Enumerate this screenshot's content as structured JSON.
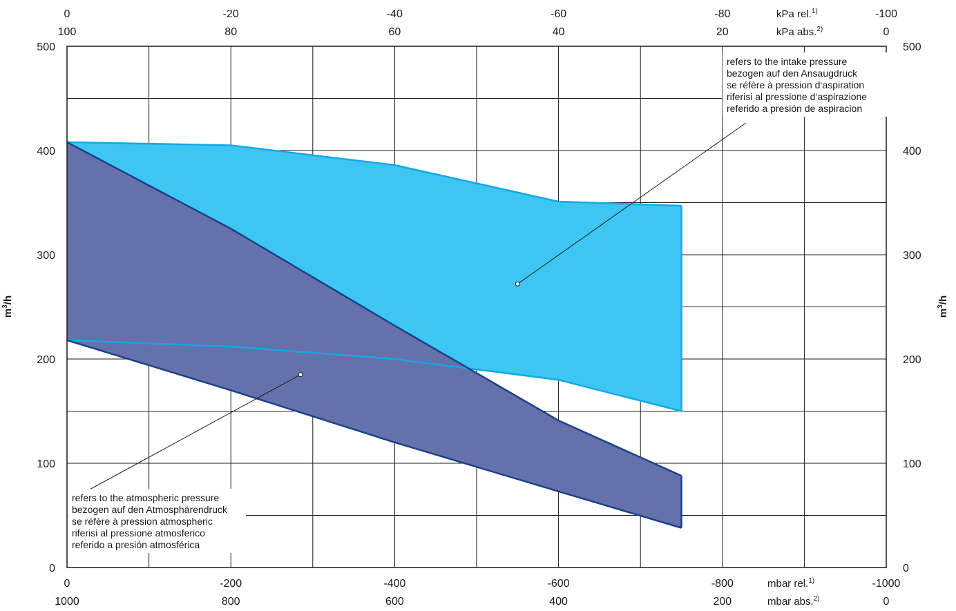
{
  "chart_data": {
    "type": "area",
    "x_axis_bottom_rel": {
      "ticks": [
        "0",
        "-200",
        "-400",
        "-600",
        "-800",
        "-1000"
      ],
      "unit_label": "mbar rel.",
      "unit_sup": "1)"
    },
    "x_axis_bottom_abs": {
      "ticks": [
        "1000",
        "800",
        "600",
        "400",
        "200",
        "0"
      ],
      "unit_label": "mbar abs.",
      "unit_sup": "2)"
    },
    "x_axis_top_rel": {
      "ticks": [
        "0",
        "-20",
        "-40",
        "-60",
        "-80",
        "-100"
      ],
      "unit_label": "kPa rel.",
      "unit_sup": "1)"
    },
    "x_axis_top_abs": {
      "ticks": [
        "100",
        "80",
        "60",
        "40",
        "20",
        "0"
      ],
      "unit_label": "kPa abs.",
      "unit_sup": "2)"
    },
    "y_axis": {
      "ticks": [
        "0",
        "100",
        "200",
        "300",
        "400",
        "500"
      ],
      "label_main": "m",
      "label_sup": "3",
      "label_end": "/h"
    },
    "xlim": [
      0,
      -1000
    ],
    "ylim": [
      0,
      500
    ],
    "grid": true,
    "series": [
      {
        "color": "#3ec6f2",
        "edge_color": "#14a8e6",
        "upper": [
          {
            "x": 0,
            "y": 408
          },
          {
            "x": -200,
            "y": 405
          },
          {
            "x": -400,
            "y": 386
          },
          {
            "x": -600,
            "y": 351
          },
          {
            "x": -750,
            "y": 347
          }
        ],
        "lower": [
          {
            "x": 0,
            "y": 218
          },
          {
            "x": -200,
            "y": 212
          },
          {
            "x": -400,
            "y": 200
          },
          {
            "x": -500,
            "y": 190
          },
          {
            "x": -600,
            "y": 180
          },
          {
            "x": -750,
            "y": 150
          }
        ]
      },
      {
        "color": "#6571ab",
        "edge_color": "#1b3f8a",
        "upper": [
          {
            "x": 0,
            "y": 408
          },
          {
            "x": -200,
            "y": 325
          },
          {
            "x": -400,
            "y": 232
          },
          {
            "x": -600,
            "y": 141
          },
          {
            "x": -750,
            "y": 88
          }
        ],
        "lower": [
          {
            "x": 0,
            "y": 218
          },
          {
            "x": -200,
            "y": 170
          },
          {
            "x": -400,
            "y": 120
          },
          {
            "x": -600,
            "y": 73
          },
          {
            "x": -750,
            "y": 38
          }
        ]
      }
    ],
    "annotations": [
      {
        "lines": [
          "refers to the intake pressure",
          "bezogen auf den Ansaugdruck",
          "se réfère à pression d‘aspiration",
          "riferisi al pressione d‘aspirazione",
          "referido a presión de aspiracion"
        ],
        "points_to": {
          "x": -550,
          "y": 272
        }
      },
      {
        "lines": [
          "refers to the atmospheric pressure",
          "bezogen auf den Atmosphärendruck",
          "se réfère à pression atmospheric",
          "riferisi al pressione atmosferico",
          "referido a presión atmosférica"
        ],
        "points_to": {
          "x": -285,
          "y": 185
        }
      }
    ]
  }
}
